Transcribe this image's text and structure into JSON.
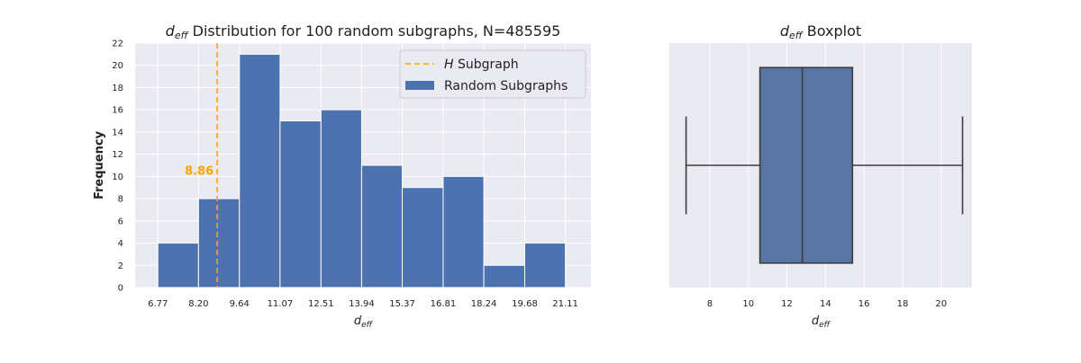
{
  "chart_data": [
    {
      "type": "bar",
      "title_symbol": "d",
      "title_sub": "eff",
      "title_rest": " Distribution for 100 random subgraphs, N=485595",
      "xlabel_symbol": "d",
      "xlabel_sub": "eff",
      "ylabel": "Frequency",
      "bin_edges": [
        6.77,
        8.2,
        9.64,
        11.07,
        12.51,
        13.94,
        15.37,
        16.81,
        18.24,
        19.68,
        21.11
      ],
      "xtick_labels": [
        "6.77",
        "8.20",
        "9.64",
        "11.07",
        "12.51",
        "13.94",
        "15.37",
        "16.81",
        "18.24",
        "19.68",
        "21.11"
      ],
      "values": [
        4,
        8,
        21,
        15,
        16,
        11,
        9,
        10,
        2,
        4
      ],
      "ylim": [
        0,
        22
      ],
      "yticks": [
        0,
        2,
        4,
        6,
        8,
        10,
        12,
        14,
        16,
        18,
        20,
        22
      ],
      "grid": true,
      "bar_color": "#4c72b0",
      "vline": {
        "x": 8.86,
        "label": "8.86",
        "color": "#ffa500",
        "style": "dashed"
      },
      "legend": {
        "position": "top-right",
        "entries": [
          {
            "symbol": "H",
            "text": " Subgraph",
            "kind": "line",
            "color": "#ffa500"
          },
          {
            "text": "Random Subgraphs",
            "kind": "patch",
            "color": "#4c72b0"
          }
        ]
      }
    },
    {
      "type": "box",
      "title_symbol": "d",
      "title_sub": "eff",
      "title_rest": " Boxplot",
      "xlabel_symbol": "d",
      "xlabel_sub": "eff",
      "xlim": [
        5.9,
        21.6
      ],
      "xticks": [
        8,
        10,
        12,
        14,
        16,
        18,
        20
      ],
      "xtick_labels": [
        "8",
        "10",
        "12",
        "14",
        "16",
        "18",
        "20"
      ],
      "box": {
        "min": 6.77,
        "q1": 10.6,
        "median": 12.8,
        "q3": 15.4,
        "max": 21.11
      },
      "box_color": "#5875a4",
      "grid": true
    }
  ],
  "colors": {
    "plot_background": "#eaeaf2",
    "grid": "#ffffff",
    "edge": "#3d3d3d"
  }
}
